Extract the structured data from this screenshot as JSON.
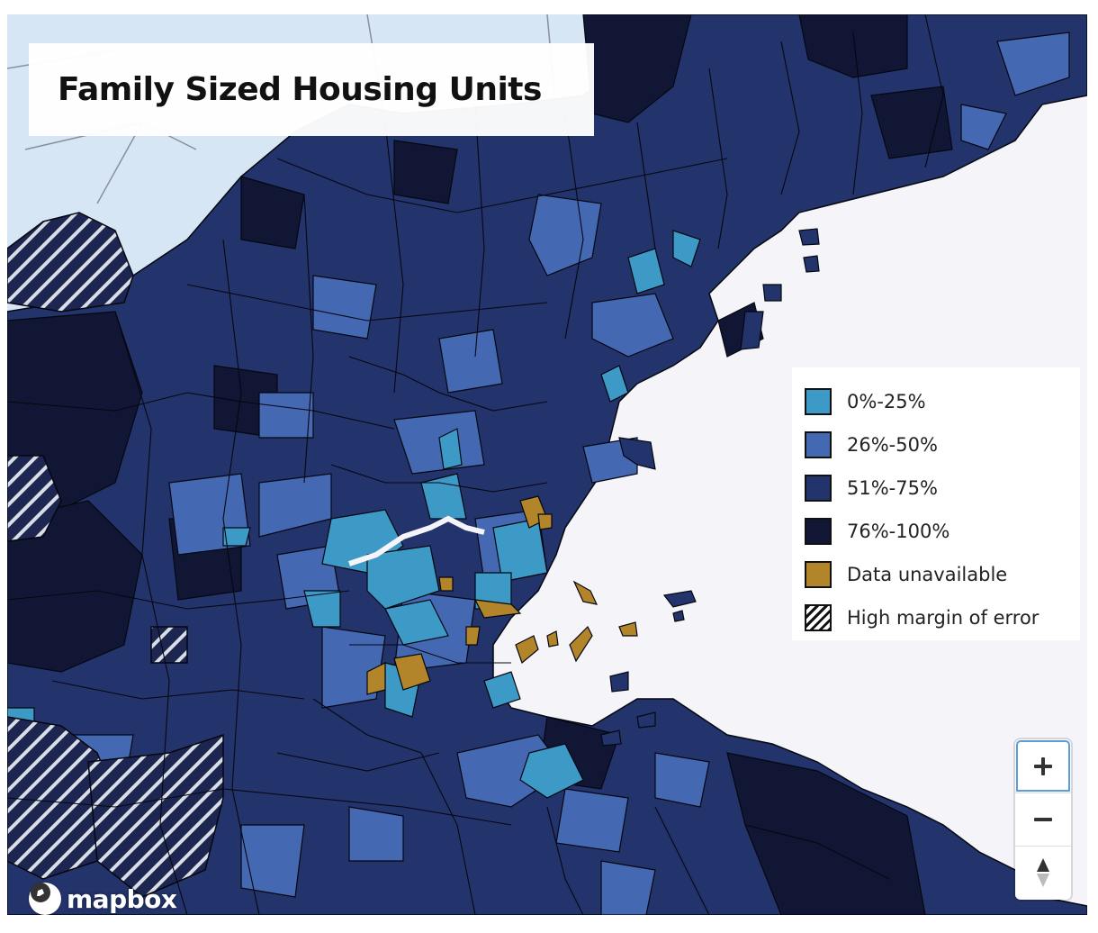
{
  "map": {
    "title": "Family Sized Housing Units",
    "colors": {
      "ocean": "#f4f4f9",
      "out_of_region": "#d6e6f5",
      "bin_0_25": "#3d99c6",
      "bin_26_50": "#4568b3",
      "bin_51_75": "#23336b",
      "bin_76_100": "#111634",
      "data_unavailable": "#b2852a",
      "outline": "#05070f"
    }
  },
  "legend": {
    "items": [
      {
        "label": "0%-25%",
        "color": "#3d99c6",
        "pattern": "solid"
      },
      {
        "label": "26%-50%",
        "color": "#4568b3",
        "pattern": "solid"
      },
      {
        "label": "51%-75%",
        "color": "#23336b",
        "pattern": "solid"
      },
      {
        "label": "76%-100%",
        "color": "#111634",
        "pattern": "solid"
      },
      {
        "label": "Data unavailable",
        "color": "#b2852a",
        "pattern": "solid"
      },
      {
        "label": "High margin of error",
        "color": "#111111",
        "pattern": "hatch"
      }
    ]
  },
  "controls": {
    "zoom_in_icon": "plus-icon",
    "zoom_out_icon": "minus-icon",
    "compass_icon": "compass-icon"
  },
  "attribution": {
    "logo_text": "mapbox"
  }
}
